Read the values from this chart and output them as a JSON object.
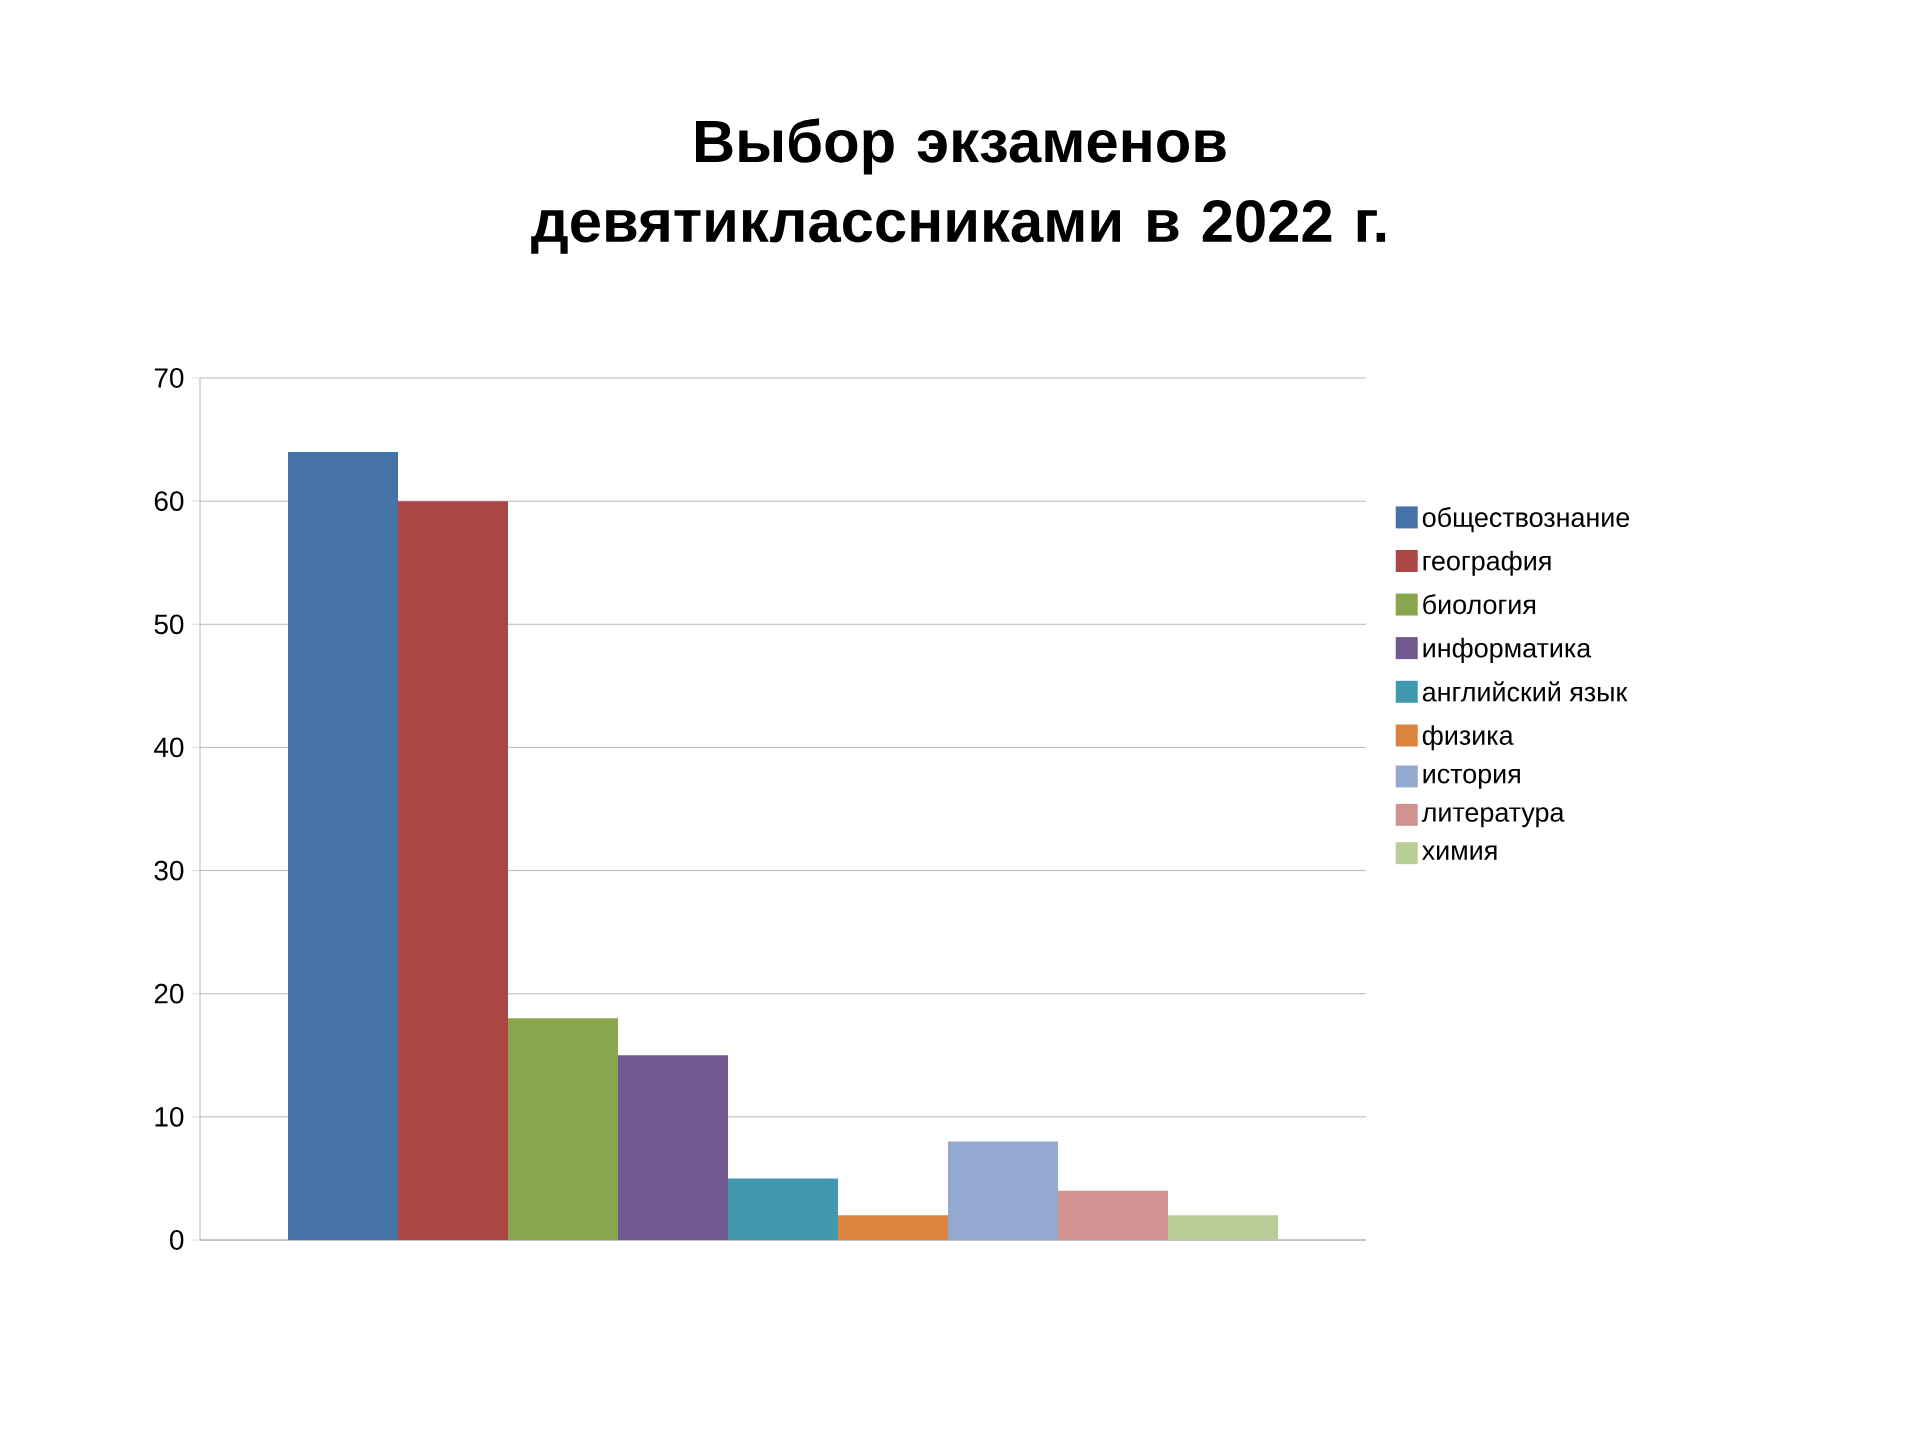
{
  "chart_data": {
    "type": "bar",
    "title": "Выбор экзаменов девятиклассниками в 2022 г.",
    "categories": [
      null
    ],
    "series": [
      {
        "name": "обществознание",
        "color": "#4572a7",
        "values": [
          64
        ]
      },
      {
        "name": "география",
        "color": "#aa4643",
        "values": [
          60
        ]
      },
      {
        "name": "биология",
        "color": "#89a54e",
        "values": [
          18
        ]
      },
      {
        "name": "информатика",
        "color": "#71588f",
        "values": [
          15
        ]
      },
      {
        "name": "английский язык",
        "color": "#4198af",
        "values": [
          5
        ]
      },
      {
        "name": "физика",
        "color": "#db843d",
        "values": [
          2
        ]
      },
      {
        "name": "история",
        "color": "#93a9cf",
        "values": [
          8
        ]
      },
      {
        "name": "литература",
        "color": "#d19392",
        "values": [
          4
        ]
      },
      {
        "name": "химия",
        "color": "#b9cd96",
        "values": [
          2
        ]
      }
    ],
    "ylim": [
      0,
      70
    ],
    "yticks": [
      0,
      10,
      20,
      30,
      40,
      50,
      60,
      70
    ],
    "grid": "y",
    "legend": "right"
  }
}
